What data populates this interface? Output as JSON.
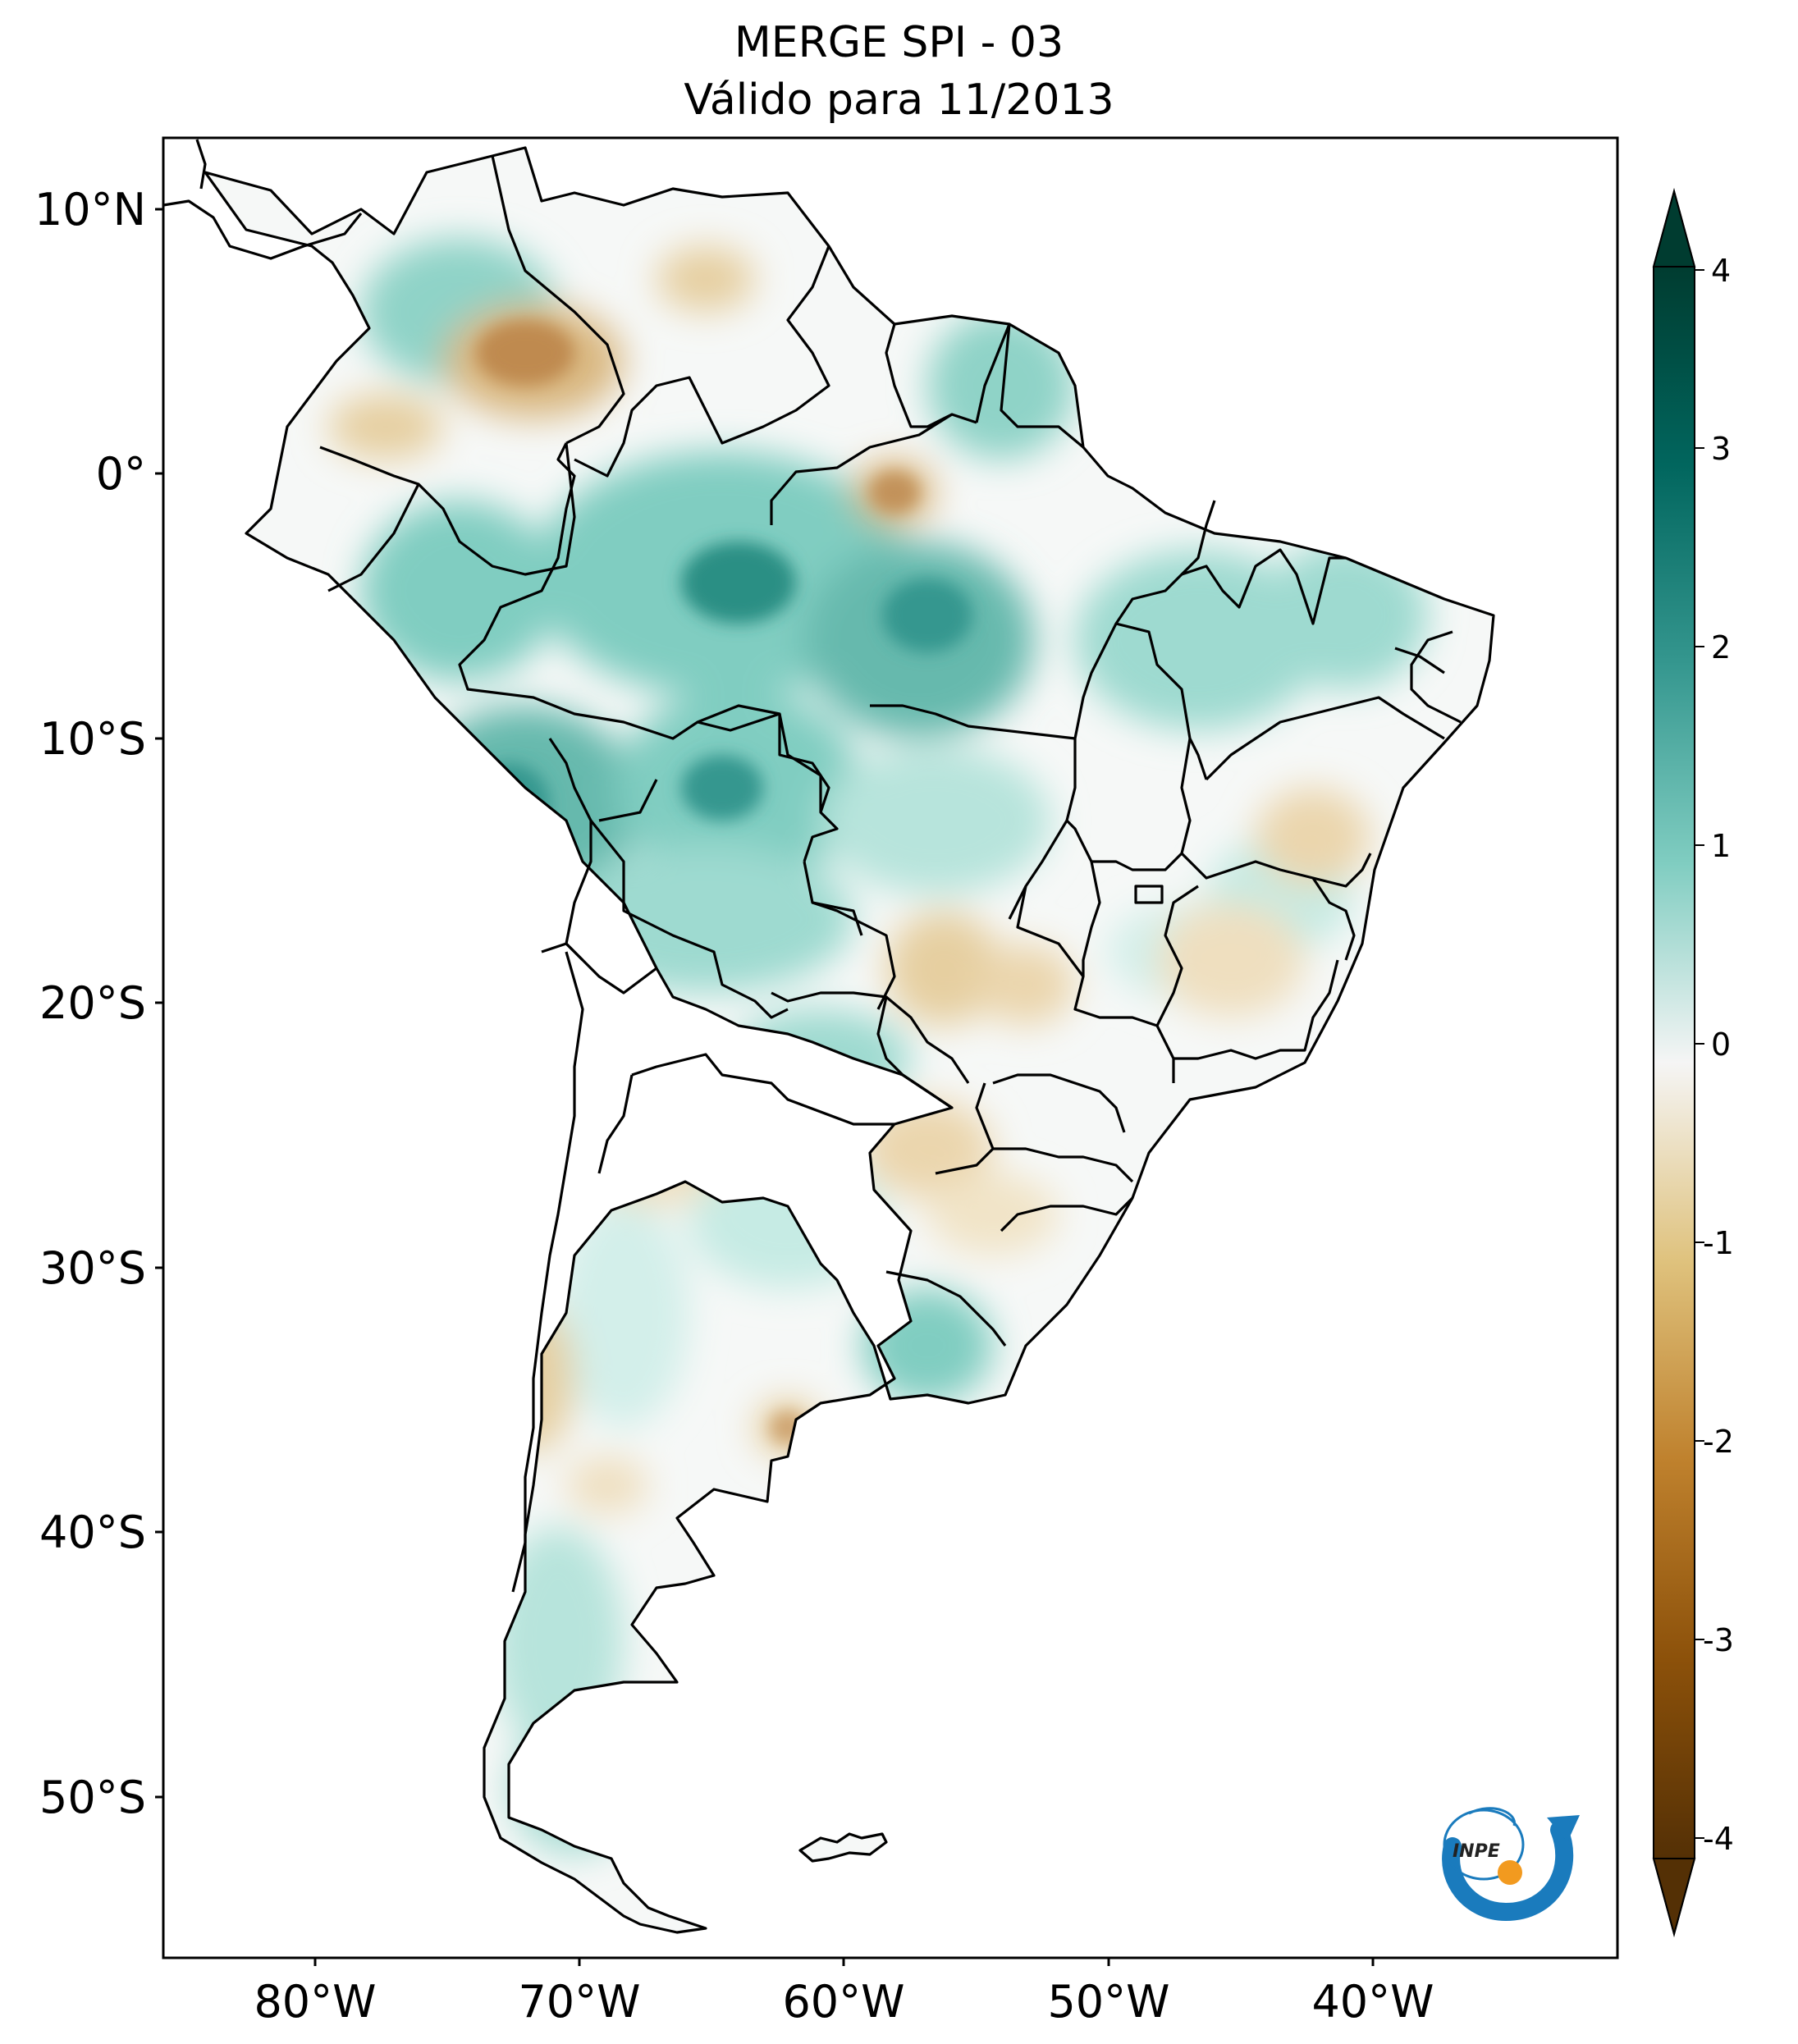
{
  "title": {
    "line1": "MERGE   SPI - 03",
    "line2": "Válido para 11/2013"
  },
  "variable": "SPI - 03",
  "dataset": "MERGE",
  "valid_period": "11/2013",
  "axes": {
    "lat_ticks": [
      "10°N",
      "0°",
      "10°S",
      "20°S",
      "30°S",
      "40°S",
      "50°S"
    ],
    "lon_ticks": [
      "80°W",
      "70°W",
      "60°W",
      "50°W",
      "40°W"
    ]
  },
  "colorbar": {
    "labels": [
      "4",
      "3",
      "2",
      "1",
      "0",
      "-1",
      "-2",
      "-3",
      "-4"
    ],
    "range": [
      -4,
      4
    ],
    "extend": "both",
    "colors": {
      "max": "#003c30",
      "high": "#01665e",
      "mid_high": "#35978f",
      "low_high": "#80cdc1",
      "near_zero": "#f5f5f5",
      "low_dry": "#dfc27d",
      "mid_dry": "#bf812d",
      "high_dry": "#8c510a",
      "min": "#543005"
    }
  },
  "colors": {
    "wet": "#8fd3c7",
    "very_wet": "#2a8f84",
    "dry": "#e6cfa0",
    "very_dry": "#c2925a",
    "border": "#000000"
  },
  "logo": {
    "text": "INPE"
  }
}
